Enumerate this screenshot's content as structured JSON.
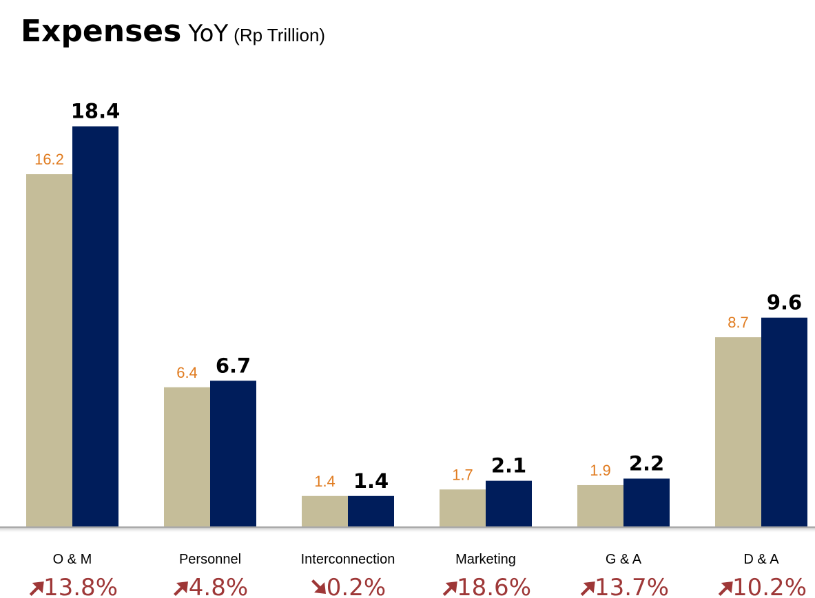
{
  "title": {
    "main": "Expenses",
    "yoy": "YoY",
    "unit": "(Rp Trillion)"
  },
  "colors": {
    "previous": "#c5bd99",
    "current": "#001d5b",
    "previous_label": "#e07b1f",
    "change": "#9e3737"
  },
  "chart_data": {
    "type": "bar",
    "categories": [
      "O & M",
      "Personnel",
      "Interconnection",
      "Marketing",
      "G & A",
      "D & A"
    ],
    "series": [
      {
        "values": [
          16.2,
          6.4,
          1.4,
          1.7,
          1.9,
          8.7
        ],
        "color": "#c5bd99"
      },
      {
        "values": [
          18.4,
          6.7,
          1.4,
          2.1,
          2.2,
          9.6
        ],
        "color": "#001d5b"
      }
    ],
    "value_labels": {
      "previous": [
        "16.2",
        "6.4",
        "1.4",
        "1.7",
        "1.9",
        "8.7"
      ],
      "current": [
        "18.4",
        "6.7",
        "1.4",
        "2.1",
        "2.2",
        "9.6"
      ]
    },
    "changes": [
      {
        "text": "13.8%",
        "direction": "up"
      },
      {
        "text": "4.8%",
        "direction": "up"
      },
      {
        "text": "0.2%",
        "direction": "down"
      },
      {
        "text": "18.6%",
        "direction": "up"
      },
      {
        "text": "13.7%",
        "direction": "up"
      },
      {
        "text": "10.2%",
        "direction": "up"
      }
    ],
    "ylim": [
      0,
      20
    ],
    "grid": false,
    "legend": "none"
  }
}
